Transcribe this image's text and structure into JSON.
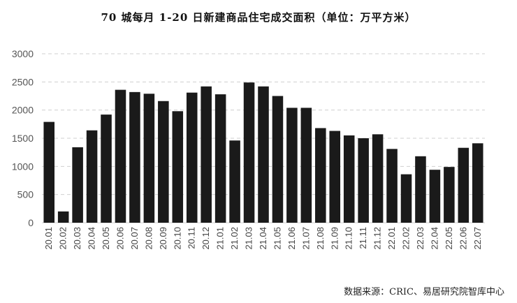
{
  "title": "70 城每月 1-20 日新建商品住宅成交面积（单位：万平方米）",
  "source": "数据来源：CRIC、易居研究院智库中心",
  "chart_data": {
    "type": "bar",
    "title": "70 城每月 1-20 日新建商品住宅成交面积（单位：万平方米）",
    "xlabel": "",
    "ylabel": "",
    "ylim": [
      0,
      3000
    ],
    "yticks": [
      0,
      500,
      1000,
      1500,
      2000,
      2500,
      3000
    ],
    "grid": true,
    "bar_color": "#1a1a1a",
    "categories": [
      "20.01",
      "20.02",
      "20.03",
      "20.04",
      "20.05",
      "20.06",
      "20.07",
      "20.08",
      "20.09",
      "20.10",
      "20.11",
      "20.12",
      "21.01",
      "21.02",
      "21.03",
      "21.04",
      "21.05",
      "21.06",
      "21.07",
      "21.08",
      "21.09",
      "21.10",
      "21.11",
      "21.12",
      "22.01",
      "22.02",
      "22.03",
      "22.04",
      "22.05",
      "22.06",
      "22.07"
    ],
    "values": [
      1790,
      200,
      1340,
      1640,
      1920,
      2360,
      2320,
      2290,
      2160,
      1980,
      2310,
      2420,
      2280,
      1460,
      2490,
      2420,
      2250,
      2040,
      2040,
      1680,
      1630,
      1550,
      1500,
      1570,
      1310,
      860,
      1180,
      940,
      990,
      1330,
      1410
    ]
  }
}
